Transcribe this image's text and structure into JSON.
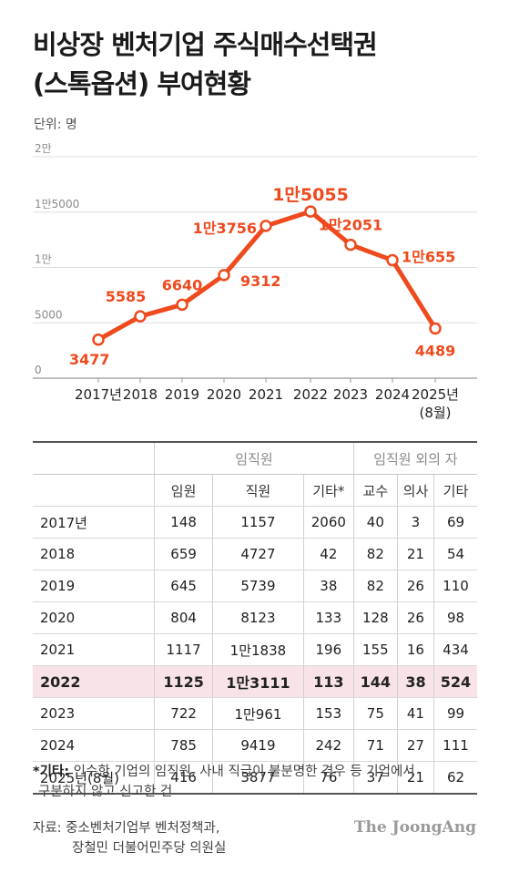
{
  "title_line1": "비상장 벤처기업 주식매수선택권",
  "title_line2": "(스톡옵션) 부여현황",
  "unit": "단위: 명",
  "colors": {
    "accent": "#ee4a1d",
    "highlight_row": "#f8e4e8",
    "grid": "#dddddd"
  },
  "chart_data": {
    "type": "line",
    "categories": [
      "2017년",
      "2018",
      "2019",
      "2020",
      "2021",
      "2022",
      "2023",
      "2024",
      "2025년"
    ],
    "category_sub": [
      "",
      "",
      "",
      "",
      "",
      "",
      "",
      "",
      "(8월)"
    ],
    "values": [
      3477,
      5585,
      6640,
      9312,
      13756,
      15055,
      12051,
      10655,
      4489
    ],
    "data_labels": [
      "3477",
      "5585",
      "6640",
      "9312",
      "1만3756",
      "1만5055",
      "1만2051",
      "1만655",
      "4489"
    ],
    "y_ticks": [
      0,
      5000,
      10000,
      15000,
      20000
    ],
    "y_tick_labels": [
      "0",
      "5000",
      "1만",
      "1만5000",
      "2만"
    ],
    "ylim": [
      0,
      20000
    ],
    "grid": true
  },
  "table": {
    "group_headers": [
      "임직원",
      "임직원 외의 자"
    ],
    "columns": [
      "임원",
      "직원",
      "기타*",
      "교수",
      "의사",
      "기타"
    ],
    "rows": [
      {
        "year": "2017년",
        "cells": [
          "148",
          "1157",
          "2060",
          "40",
          "3",
          "69"
        ]
      },
      {
        "year": "2018",
        "cells": [
          "659",
          "4727",
          "42",
          "82",
          "21",
          "54"
        ]
      },
      {
        "year": "2019",
        "cells": [
          "645",
          "5739",
          "38",
          "82",
          "26",
          "110"
        ]
      },
      {
        "year": "2020",
        "cells": [
          "804",
          "8123",
          "133",
          "128",
          "26",
          "98"
        ]
      },
      {
        "year": "2021",
        "cells": [
          "1117",
          "1만1838",
          "196",
          "155",
          "16",
          "434"
        ]
      },
      {
        "year": "2022",
        "cells": [
          "1125",
          "1만3111",
          "113",
          "144",
          "38",
          "524"
        ]
      },
      {
        "year": "2023",
        "cells": [
          "722",
          "1만961",
          "153",
          "75",
          "41",
          "99"
        ]
      },
      {
        "year": "2024",
        "cells": [
          "785",
          "9419",
          "242",
          "71",
          "27",
          "111"
        ]
      },
      {
        "year": "2025년(8월)",
        "cells": [
          "416",
          "3877",
          "76",
          "37",
          "21",
          "62"
        ]
      }
    ]
  },
  "note": {
    "label": "*기타:",
    "line1": " 인수한 기업의 임직원, 사내 직급이 불분명한 경우 등 기업에서",
    "line2": "구분하지 않고 신고한 건"
  },
  "source": {
    "line1": "자료: 중소벤처기업부 벤처정책과,",
    "line2": "장철민 더불어민주당 의원실"
  },
  "brand": "The JoongAng"
}
